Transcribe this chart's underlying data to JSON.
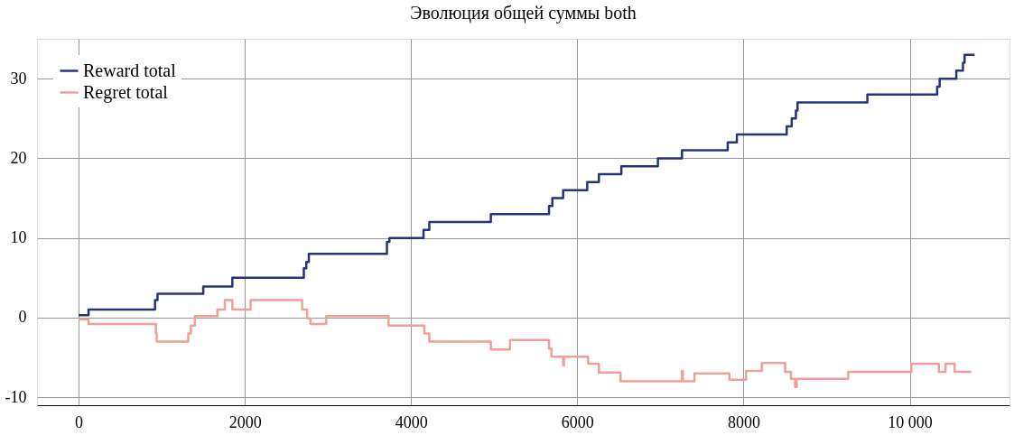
{
  "chart_data": {
    "type": "step",
    "title": "Эволюция общей суммы both",
    "xlim": [
      -500,
      11200
    ],
    "ylim": [
      -11,
      35
    ],
    "xticks": [
      0,
      2000,
      4000,
      6000,
      8000,
      {
        "value": 10000,
        "label": "10 000"
      }
    ],
    "yticks": [
      -10,
      0,
      10,
      20,
      30
    ],
    "grid": true,
    "legend": "top left",
    "line_style": "solid",
    "marker": "none",
    "series": [
      {
        "name": "Reward total",
        "color": "#27347a",
        "x": [
          0,
          120,
          920,
          950,
          1500,
          1850,
          2710,
          2740,
          2770,
          3710,
          3740,
          4150,
          4220,
          4960,
          5660,
          5700,
          5830,
          6120,
          6260,
          6530,
          6970,
          7260,
          7810,
          7920,
          8520,
          8580,
          8630,
          8650,
          9490,
          10330,
          10360,
          10560,
          10640,
          10660,
          10780
        ],
        "values": [
          0.3,
          1,
          2.2,
          3,
          3.9,
          5,
          6.2,
          7,
          8,
          9.5,
          10,
          11,
          12,
          13,
          14,
          15,
          16,
          17,
          18,
          19,
          20,
          21,
          22,
          23,
          24,
          25,
          26,
          27,
          28,
          29,
          30,
          31,
          32,
          33,
          33
        ]
      },
      {
        "name": "Regret total",
        "color": "#f0a09a",
        "x": [
          0,
          120,
          930,
          940,
          1320,
          1350,
          1400,
          1670,
          1760,
          1850,
          2070,
          2690,
          2750,
          2790,
          2980,
          3730,
          4160,
          4220,
          4960,
          5190,
          5660,
          5690,
          5830,
          5840,
          6130,
          6260,
          6520,
          7260,
          7270,
          7410,
          7830,
          8030,
          8220,
          8500,
          8570,
          8620,
          8640,
          9260,
          10020,
          10350,
          10430,
          10540,
          10740
        ],
        "values": [
          -0.2,
          -0.8,
          -2,
          -3,
          -2,
          -1,
          0.2,
          1,
          2.2,
          1,
          2.2,
          1,
          -0.1,
          -0.8,
          0.2,
          -1,
          -2,
          -3,
          -4,
          -2.8,
          -3.9,
          -4.9,
          -6,
          -4.9,
          -5.8,
          -6.9,
          -8,
          -6.7,
          -8,
          -7,
          -7.8,
          -6.7,
          -5.7,
          -6.8,
          -7.7,
          -8.7,
          -7.7,
          -6.8,
          -5.8,
          -6.8,
          -5.8,
          -6.8,
          -6.8
        ]
      }
    ]
  }
}
